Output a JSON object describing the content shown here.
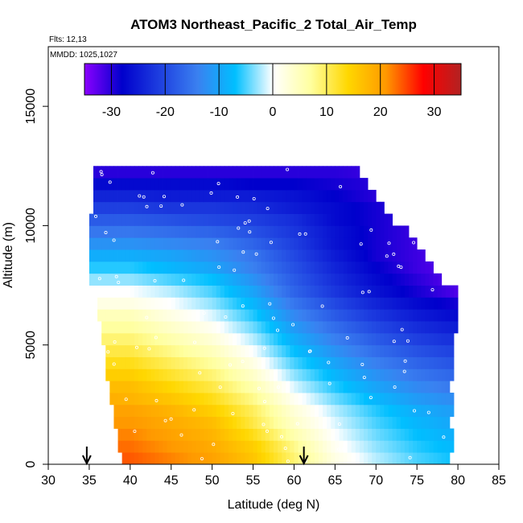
{
  "chart_data": {
    "type": "heatmap",
    "title": "ATOM3 Northeast_Pacific_2 Total_Air_Temp",
    "flights_label": "Flts: 12,13",
    "dates_label": "MMDD: 1025,1027",
    "xlabel": "Latitude (deg N)",
    "ylabel": "Altitude (m)",
    "xlim": [
      30,
      85
    ],
    "ylim": [
      0,
      17500
    ],
    "x_ticks": [
      "30",
      "35",
      "40",
      "45",
      "50",
      "55",
      "60",
      "65",
      "70",
      "75",
      "80",
      "85"
    ],
    "y_ticks": [
      "0",
      "5000",
      "10000",
      "15000"
    ],
    "colorbar": {
      "range": [
        -35,
        35
      ],
      "ticks": [
        "-30",
        "-20",
        "-10",
        "0",
        "10",
        "20",
        "30"
      ],
      "colors": [
        "#8B00FF",
        "#0000CC",
        "#1E3FE0",
        "#3A80F0",
        "#00BFFF",
        "#FFFFFF",
        "#FFFFA0",
        "#FFD700",
        "#FF9900",
        "#FF0000",
        "#B22222"
      ]
    },
    "grid": false,
    "arrows_at_latitude": [
      34.7,
      61.2
    ],
    "altitude_bins_m": [
      0,
      500,
      1000,
      1500,
      2000,
      2500,
      3000,
      3500,
      4000,
      4500,
      5000,
      5500,
      6000,
      6500,
      7000,
      7500,
      8000,
      8500,
      9000,
      9500,
      10000,
      10500,
      11000,
      11500,
      12000
    ],
    "bin_extent_deg_N": [
      [
        39,
        79
      ],
      [
        38.5,
        79.5
      ],
      [
        38.5,
        79.5
      ],
      [
        38,
        79
      ],
      [
        38,
        79.5
      ],
      [
        37.5,
        79.5
      ],
      [
        37.5,
        79
      ],
      [
        37,
        79.5
      ],
      [
        37,
        79.5
      ],
      [
        37,
        79.5
      ],
      [
        36.5,
        79.5
      ],
      [
        36.5,
        80
      ],
      [
        36,
        80
      ],
      [
        36,
        80
      ],
      [
        35.5,
        80
      ],
      [
        35,
        78
      ],
      [
        35,
        77
      ],
      [
        35,
        76
      ],
      [
        35,
        75
      ],
      [
        35,
        74
      ],
      [
        35,
        72
      ],
      [
        35.5,
        71
      ],
      [
        35.5,
        70
      ],
      [
        35.5,
        69
      ],
      [
        35.5,
        68
      ]
    ],
    "temperature_profiles_C": {
      "latitudes_deg_N": [
        36,
        40,
        45,
        50,
        55,
        60,
        65,
        70,
        75,
        80
      ],
      "temperatures": [
        [
          24,
          24,
          22,
          20,
          16,
          9,
          2,
          -2,
          -5,
          -7
        ],
        [
          23,
          23,
          21,
          19,
          15,
          8,
          1,
          -3,
          -6,
          -8
        ],
        [
          22,
          22,
          20,
          18,
          13,
          6,
          0,
          -4,
          -7,
          -9
        ],
        [
          21,
          21,
          19,
          17,
          11,
          4,
          -1,
          -5,
          -8,
          -10
        ],
        [
          20,
          20,
          18,
          15,
          10,
          3,
          -2,
          -6,
          -9,
          -11
        ],
        [
          19,
          18,
          16,
          13,
          8,
          1,
          -4,
          -8,
          -11,
          -13
        ],
        [
          17,
          17,
          14,
          11,
          6,
          -1,
          -6,
          -10,
          -13,
          -15
        ],
        [
          15,
          15,
          12,
          9,
          4,
          -3,
          -8,
          -12,
          -15,
          -17
        ],
        [
          13,
          13,
          10,
          7,
          2,
          -5,
          -10,
          -14,
          -17,
          -19
        ],
        [
          11,
          11,
          8,
          5,
          0,
          -7,
          -12,
          -16,
          -19,
          -21
        ],
        [
          9,
          9,
          6,
          3,
          -2,
          -9,
          -14,
          -18,
          -21,
          -23
        ],
        [
          7,
          7,
          4,
          1,
          -4,
          -11,
          -16,
          -20,
          -23,
          -25
        ],
        [
          5,
          5,
          2,
          -1,
          -6,
          -13,
          -18,
          -22,
          -25,
          -27
        ],
        [
          2,
          2,
          0,
          -3,
          -8,
          -15,
          -20,
          -24,
          -27,
          -29
        ],
        [
          0,
          0,
          -2,
          -5,
          -10,
          -17,
          -22,
          -26,
          -29,
          -32
        ],
        [
          -3,
          -3,
          -5,
          -7,
          -12,
          -18,
          -23,
          -27,
          -30,
          -33
        ],
        [
          -6,
          -6,
          -8,
          -10,
          -14,
          -19,
          -24,
          -28,
          -31,
          -33
        ],
        [
          -9,
          -9,
          -10,
          -12,
          -15,
          -20,
          -25,
          -29,
          -31,
          -33
        ],
        [
          -12,
          -12,
          -13,
          -14,
          -17,
          -21,
          -26,
          -29,
          -31,
          -33
        ],
        [
          -15,
          -15,
          -16,
          -17,
          -19,
          -22,
          -26,
          -29,
          -31,
          -33
        ],
        [
          -18,
          -18,
          -19,
          -20,
          -21,
          -23,
          -27,
          -29,
          -31,
          -33
        ],
        [
          -21,
          -21,
          -22,
          -22,
          -23,
          -25,
          -27,
          -29,
          -31,
          -33
        ],
        [
          -24,
          -24,
          -25,
          -25,
          -25,
          -26,
          -28,
          -30,
          -31,
          -33
        ],
        [
          -27,
          -27,
          -27,
          -27,
          -28,
          -28,
          -29,
          -30,
          -31,
          -33
        ],
        [
          -30,
          -30,
          -30,
          -30,
          -30,
          -30,
          -30,
          -31,
          -32,
          -33
        ]
      ]
    }
  }
}
